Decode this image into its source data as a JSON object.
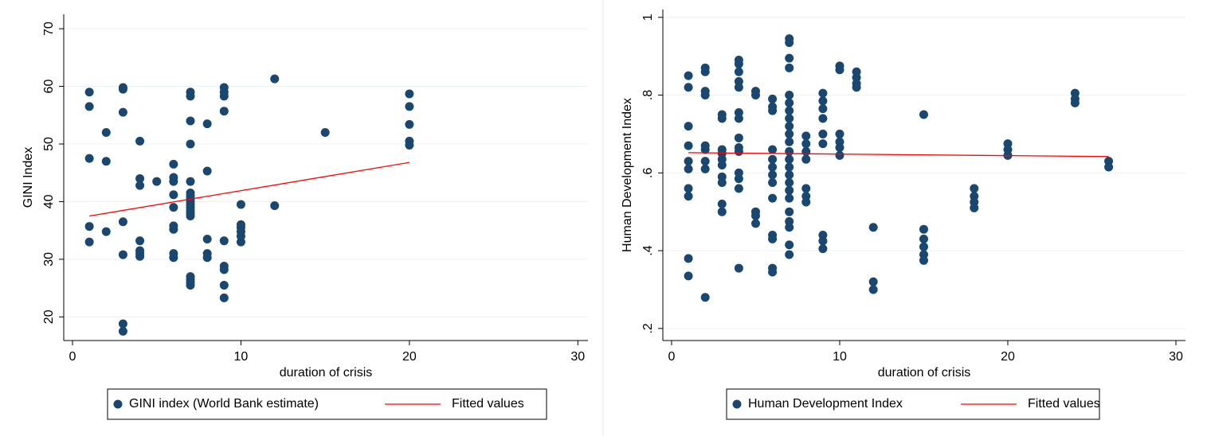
{
  "chart_data": [
    {
      "type": "scatter",
      "xlabel": "duration of crisis",
      "ylabel": "GINI Index",
      "xlim": [
        -0.52,
        30.6
      ],
      "ylim": [
        15.9,
        72.5
      ],
      "xticks": [
        0,
        10,
        20,
        30
      ],
      "yticks": [
        20,
        30,
        40,
        50,
        60,
        70
      ],
      "grid": true,
      "series": [
        {
          "name": "GINI index (World Bank estimate)",
          "color": "#1a476f",
          "mode": "markers",
          "x": [
            1,
            1,
            1,
            1,
            1,
            2,
            2,
            2,
            3,
            3,
            3,
            3,
            3,
            3,
            3,
            4,
            4,
            4,
            4,
            4,
            4,
            4,
            5,
            6,
            6,
            6,
            6,
            6,
            6,
            6,
            6,
            6,
            7,
            7,
            7,
            7,
            7,
            7,
            7,
            7,
            7,
            7,
            7,
            7,
            7,
            7,
            7,
            7,
            7,
            7,
            8,
            8,
            8,
            8,
            8,
            9,
            9,
            9,
            9,
            9,
            9,
            9,
            9,
            9,
            10,
            10,
            10,
            10,
            10,
            10,
            12,
            12,
            15,
            20,
            20,
            20,
            20,
            20
          ],
          "values": [
            59,
            56.5,
            47.5,
            35.7,
            33,
            52,
            47,
            34.8,
            59.8,
            59.5,
            55.5,
            36.5,
            30.8,
            18.8,
            17.5,
            50.5,
            44,
            42.8,
            33.2,
            31.5,
            31,
            30.5,
            43.5,
            46.5,
            44.2,
            43.5,
            41.2,
            39,
            35.8,
            35.2,
            31,
            30.3,
            59,
            58.3,
            54,
            50,
            43.5,
            41.5,
            41,
            40.5,
            40,
            39.5,
            39,
            38.5,
            38,
            37.5,
            27,
            26.5,
            26,
            25.5,
            53.5,
            45.3,
            33.5,
            31,
            30.3,
            59.8,
            59,
            58.3,
            55.7,
            33.2,
            28.8,
            28.2,
            25.5,
            23.3,
            39.5,
            36,
            35.5,
            34.8,
            34,
            33,
            61.3,
            39.3,
            52,
            58.7,
            56.5,
            53.4,
            50.5,
            49.8
          ]
        },
        {
          "name": "Fitted values",
          "color": "#ff0000",
          "mode": "line",
          "x": [
            1,
            20
          ],
          "values": [
            37.5,
            46.8
          ]
        }
      ]
    },
    {
      "type": "scatter",
      "xlabel": "duration of crisis",
      "ylabel": "Human Development Index",
      "xlim": [
        -0.52,
        30.57
      ],
      "ylim": [
        0.169,
        1.02
      ],
      "xticks": [
        0,
        10,
        20,
        30
      ],
      "yticks": [
        {
          "value": 0.2,
          "label": ".2"
        },
        {
          "value": 0.4,
          "label": ".4"
        },
        {
          "value": 0.6,
          "label": ".6"
        },
        {
          "value": 0.8,
          "label": ".8"
        },
        1
      ],
      "grid": true,
      "series": [
        {
          "name": "Human Development Index",
          "color": "#1a476f",
          "mode": "markers",
          "x": [
            1,
            1,
            1,
            1,
            1,
            1,
            1,
            1,
            1,
            1,
            2,
            2,
            2,
            2,
            2,
            2,
            2,
            2,
            2,
            3,
            3,
            3,
            3,
            3,
            3,
            3,
            3,
            3,
            3,
            4,
            4,
            4,
            4,
            4,
            4,
            4,
            4,
            4,
            4,
            4,
            4,
            4,
            4,
            5,
            5,
            5,
            5,
            5,
            6,
            6,
            6,
            6,
            6,
            6,
            6,
            6,
            6,
            6,
            6,
            6,
            6,
            7,
            7,
            7,
            7,
            7,
            7,
            7,
            7,
            7,
            7,
            7,
            7,
            7,
            7,
            7,
            7,
            7,
            7,
            7,
            7,
            7,
            7,
            7,
            8,
            8,
            8,
            8,
            8,
            8,
            8,
            9,
            9,
            9,
            9,
            9,
            9,
            9,
            9,
            9,
            10,
            10,
            10,
            10,
            10,
            10,
            11,
            11,
            11,
            11,
            12,
            12,
            12,
            15,
            15,
            15,
            15,
            15,
            15,
            18,
            18,
            18,
            18,
            20,
            20,
            20,
            24,
            24,
            24,
            26,
            26
          ],
          "values": [
            0.85,
            0.82,
            0.72,
            0.67,
            0.63,
            0.61,
            0.56,
            0.54,
            0.38,
            0.335,
            0.87,
            0.86,
            0.81,
            0.8,
            0.67,
            0.66,
            0.63,
            0.61,
            0.28,
            0.75,
            0.74,
            0.66,
            0.65,
            0.635,
            0.62,
            0.59,
            0.575,
            0.52,
            0.5,
            0.89,
            0.88,
            0.86,
            0.835,
            0.82,
            0.755,
            0.74,
            0.69,
            0.665,
            0.655,
            0.6,
            0.585,
            0.56,
            0.355,
            0.81,
            0.8,
            0.5,
            0.49,
            0.47,
            0.79,
            0.77,
            0.76,
            0.66,
            0.635,
            0.615,
            0.595,
            0.575,
            0.535,
            0.44,
            0.43,
            0.355,
            0.345,
            0.945,
            0.935,
            0.895,
            0.87,
            0.8,
            0.78,
            0.76,
            0.74,
            0.72,
            0.7,
            0.68,
            0.655,
            0.635,
            0.615,
            0.595,
            0.575,
            0.555,
            0.535,
            0.5,
            0.475,
            0.46,
            0.415,
            0.39,
            0.695,
            0.675,
            0.655,
            0.635,
            0.56,
            0.54,
            0.525,
            0.805,
            0.785,
            0.765,
            0.74,
            0.7,
            0.675,
            0.44,
            0.425,
            0.405,
            0.875,
            0.865,
            0.7,
            0.68,
            0.665,
            0.645,
            0.86,
            0.845,
            0.83,
            0.82,
            0.46,
            0.32,
            0.3,
            0.75,
            0.455,
            0.43,
            0.41,
            0.39,
            0.375,
            0.56,
            0.54,
            0.525,
            0.51,
            0.675,
            0.66,
            0.645,
            0.805,
            0.79,
            0.78,
            0.63,
            0.615
          ]
        },
        {
          "name": "Fitted values",
          "color": "#ff0000",
          "mode": "line",
          "x": [
            1,
            26
          ],
          "values": [
            0.652,
            0.642
          ]
        }
      ]
    }
  ]
}
